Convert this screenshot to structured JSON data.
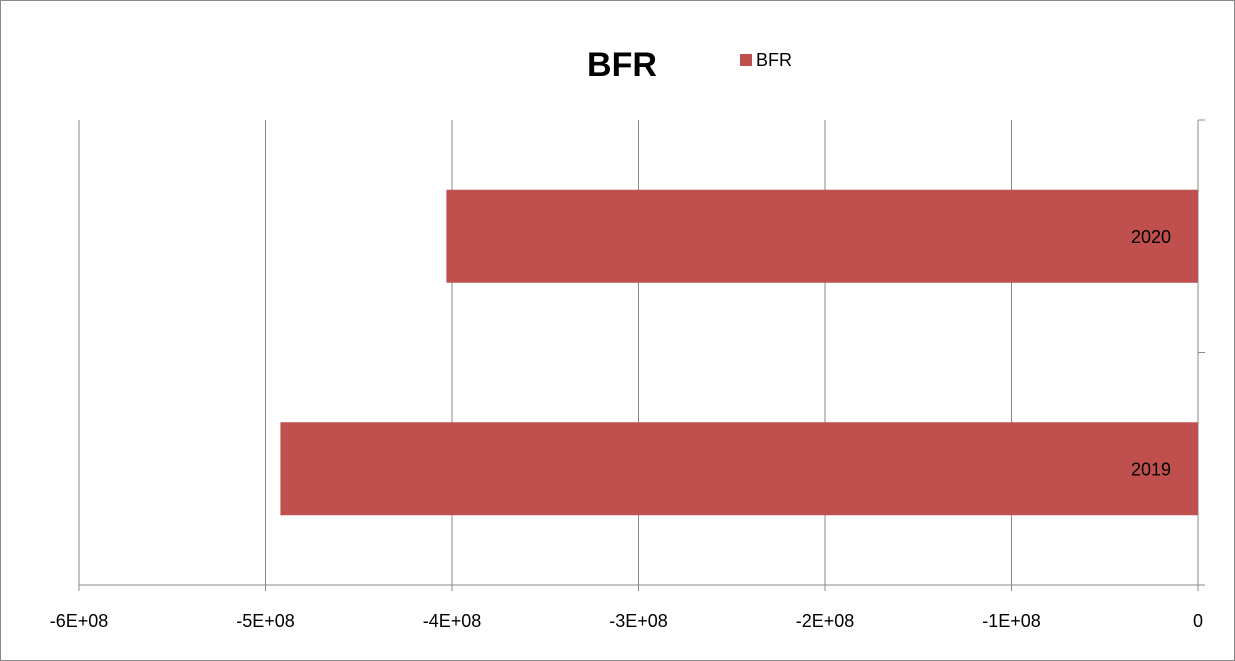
{
  "chart_data": {
    "type": "hbar",
    "title": "BFR",
    "categories": [
      "2019",
      "2020"
    ],
    "series": [
      {
        "name": "BFR",
        "color": "#c0504d",
        "values": [
          -492000000,
          -403000000
        ]
      }
    ],
    "xlim": [
      -600000000,
      0
    ],
    "xticks": [
      {
        "value": -600000000,
        "label": "-6E+08"
      },
      {
        "value": -500000000,
        "label": "-5E+08"
      },
      {
        "value": -400000000,
        "label": "-4E+08"
      },
      {
        "value": -300000000,
        "label": "-3E+08"
      },
      {
        "value": -200000000,
        "label": "-2E+08"
      },
      {
        "value": -100000000,
        "label": "-1E+08"
      },
      0
    ],
    "grid": true,
    "legend": "top-right"
  }
}
